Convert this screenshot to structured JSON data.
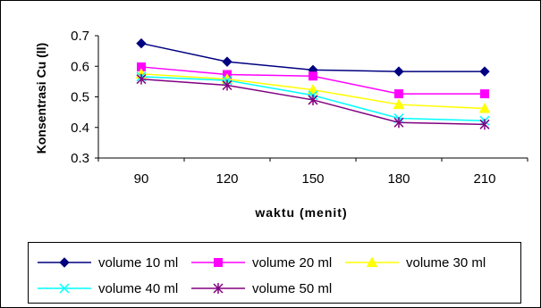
{
  "chart_data": {
    "type": "line",
    "title": "",
    "xlabel": "waktu (menit)",
    "ylabel": "Konsentrasi Cu (ll)",
    "categories": [
      "90",
      "120",
      "150",
      "180",
      "210"
    ],
    "ylim": [
      0.3,
      0.7
    ],
    "yticks": [
      "0.7",
      "0.6",
      "0.5",
      "0.4",
      "0.3"
    ],
    "grid": false,
    "legend_position": "bottom",
    "series": [
      {
        "name": "volume 10 ml",
        "values": [
          0.675,
          0.615,
          0.588,
          0.583,
          0.583
        ],
        "color": "#000080",
        "marker": "diamond"
      },
      {
        "name": "volume 20 ml",
        "values": [
          0.598,
          0.573,
          0.568,
          0.51,
          0.51
        ],
        "color": "#FF00FF",
        "marker": "square"
      },
      {
        "name": "volume 30 ml",
        "values": [
          0.575,
          0.558,
          0.523,
          0.475,
          0.462
        ],
        "color": "#FFFF00",
        "marker": "triangle"
      },
      {
        "name": "volume 40 ml",
        "values": [
          0.566,
          0.554,
          0.505,
          0.43,
          0.422
        ],
        "color": "#00FFFF",
        "marker": "x"
      },
      {
        "name": "volume 50 ml",
        "values": [
          0.558,
          0.538,
          0.49,
          0.416,
          0.41
        ],
        "color": "#800080",
        "marker": "star"
      }
    ]
  }
}
